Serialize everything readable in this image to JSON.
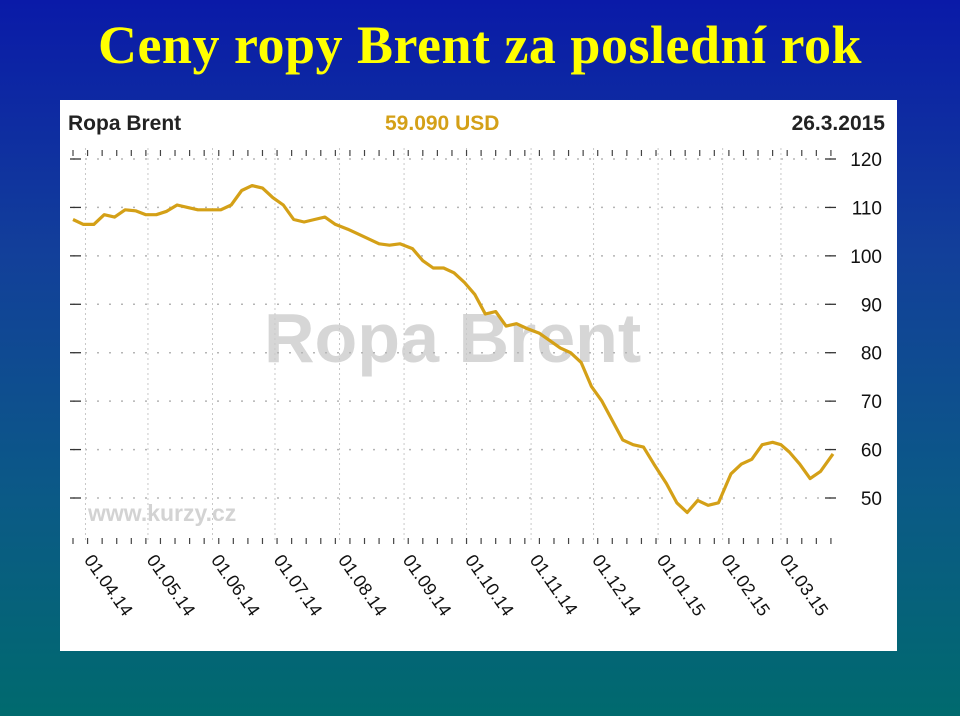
{
  "slide": {
    "title": "Ceny ropy Brent za poslední rok"
  },
  "chart_header": {
    "instrument": "Ropa Brent",
    "price": "59.090 USD",
    "date": "26.3.2015"
  },
  "watermarks": {
    "main": "Ropa Brent",
    "site": "www.kurzy.cz"
  },
  "colors": {
    "line": "#d4a017",
    "title": "#ffff00",
    "price": "#d4a017",
    "grid": "#c8c8c8"
  },
  "chart_data": {
    "type": "line",
    "title": "Ropa Brent",
    "ylabel": "",
    "xlabel": "",
    "ylim": [
      40,
      123
    ],
    "yticks": [
      120,
      110,
      100,
      90,
      80,
      70,
      60,
      50
    ],
    "y_axis_position": "right",
    "xticks": [
      "01.04.14",
      "01.05.14",
      "01.06.14",
      "01.07.14",
      "01.08.14",
      "01.09.14",
      "01.10.14",
      "01.11.14",
      "01.12.14",
      "01.01.15",
      "01.02.15",
      "01.03.15"
    ],
    "grid": true,
    "series": [
      {
        "name": "Ropa Brent",
        "x": [
          "2014-03-26",
          "2014-03-31",
          "2014-04-05",
          "2014-04-10",
          "2014-04-15",
          "2014-04-20",
          "2014-04-25",
          "2014-04-30",
          "2014-05-05",
          "2014-05-10",
          "2014-05-15",
          "2014-05-20",
          "2014-05-25",
          "2014-05-30",
          "2014-06-05",
          "2014-06-10",
          "2014-06-15",
          "2014-06-20",
          "2014-06-25",
          "2014-06-30",
          "2014-07-05",
          "2014-07-10",
          "2014-07-15",
          "2014-07-20",
          "2014-07-25",
          "2014-07-30",
          "2014-08-05",
          "2014-08-10",
          "2014-08-15",
          "2014-08-20",
          "2014-08-25",
          "2014-08-30",
          "2014-09-05",
          "2014-09-10",
          "2014-09-15",
          "2014-09-20",
          "2014-09-25",
          "2014-09-30",
          "2014-10-05",
          "2014-10-10",
          "2014-10-15",
          "2014-10-20",
          "2014-10-25",
          "2014-10-30",
          "2014-11-05",
          "2014-11-10",
          "2014-11-15",
          "2014-11-20",
          "2014-11-25",
          "2014-11-30",
          "2014-12-05",
          "2014-12-10",
          "2014-12-15",
          "2014-12-20",
          "2014-12-25",
          "2014-12-30",
          "2015-01-05",
          "2015-01-10",
          "2015-01-15",
          "2015-01-20",
          "2015-01-25",
          "2015-01-30",
          "2015-02-05",
          "2015-02-10",
          "2015-02-15",
          "2015-02-20",
          "2015-02-25",
          "2015-03-01",
          "2015-03-05",
          "2015-03-10",
          "2015-03-15",
          "2015-03-20",
          "2015-03-26"
        ],
        "values": [
          107.5,
          106.5,
          106.5,
          108.5,
          108,
          109.5,
          109.3,
          108.5,
          108.5,
          109.2,
          110.5,
          110,
          109.5,
          109.5,
          109.5,
          110.5,
          113.5,
          114.5,
          114,
          112,
          110.5,
          107.5,
          107,
          107.5,
          108,
          106.5,
          105.5,
          104.5,
          103.5,
          102.5,
          102.2,
          102.5,
          101.5,
          99,
          97.5,
          97.5,
          96.5,
          94.5,
          92,
          88,
          88.5,
          85.5,
          86,
          85,
          84,
          82.5,
          81,
          80,
          78,
          73,
          70,
          66,
          62,
          61,
          60.5,
          57,
          53,
          49,
          47,
          49.5,
          48.5,
          49,
          55,
          57,
          58,
          61,
          61.5,
          61,
          59.5,
          57,
          54,
          55.5,
          59.1
        ]
      }
    ]
  }
}
